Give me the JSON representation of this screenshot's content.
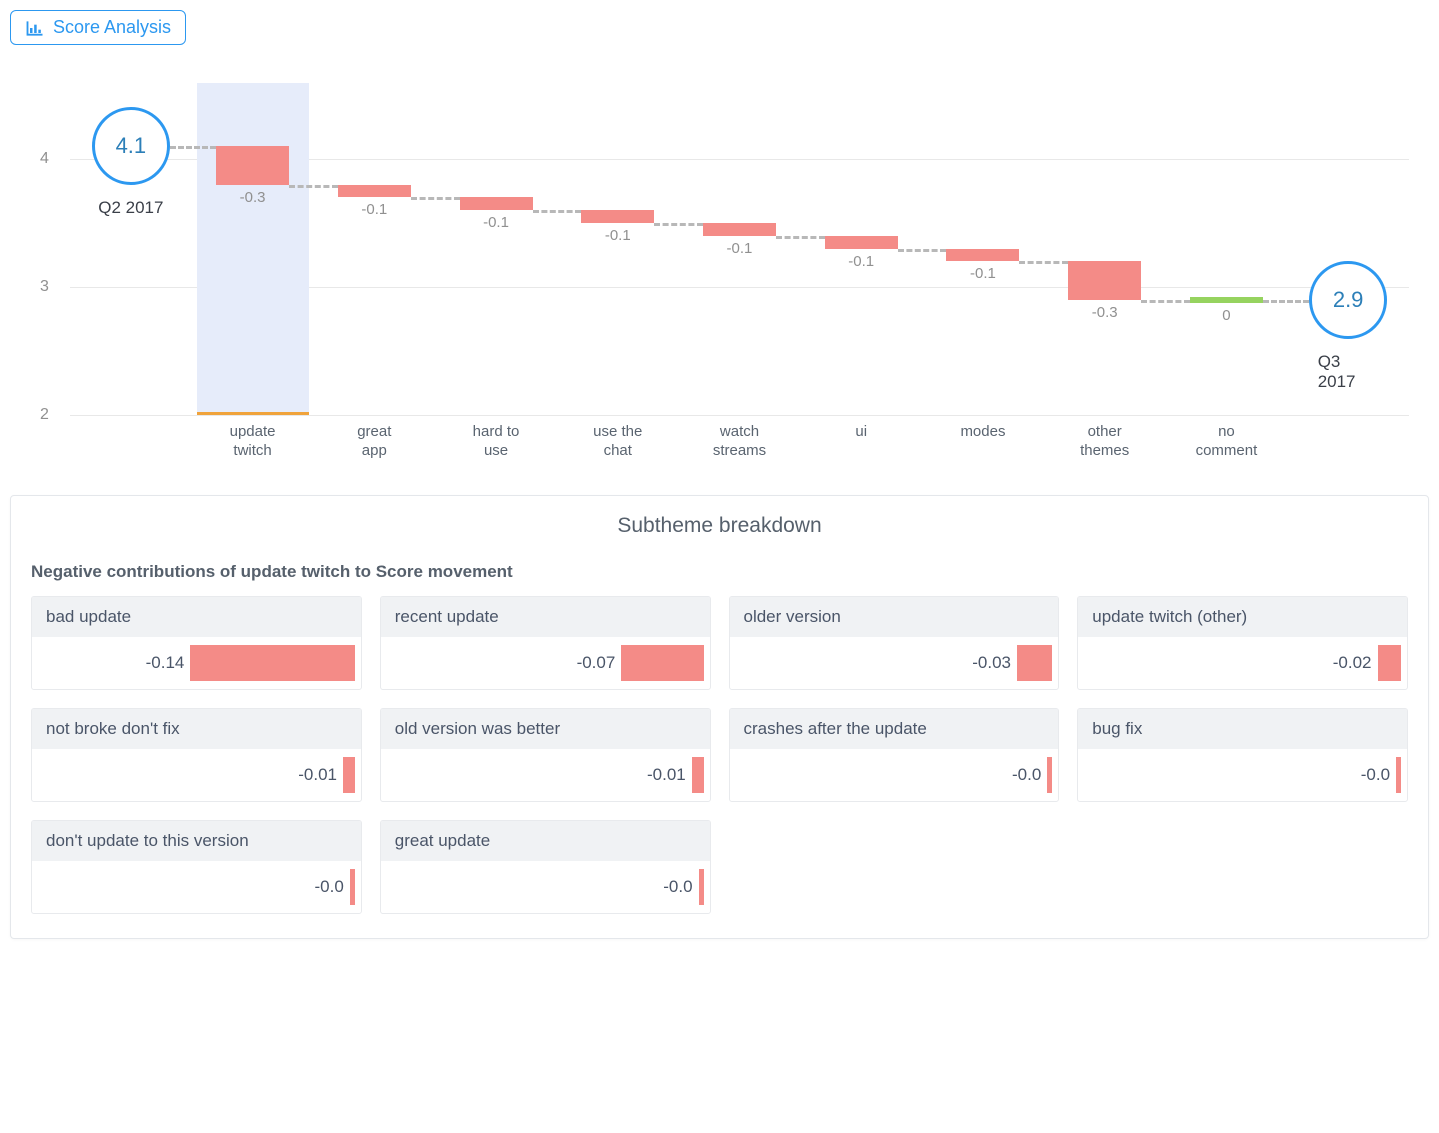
{
  "header": {
    "button_label": "Score Analysis"
  },
  "waterfall": {
    "type": "waterfall",
    "y_axis": {
      "min": 2,
      "max": 4.5,
      "ticks": [
        2,
        3,
        4
      ]
    },
    "gridline_color": "#e8e8e8",
    "start": {
      "value": 4.1,
      "label": "Q2 2017"
    },
    "end": {
      "value": 2.9,
      "label": "Q3 2017"
    },
    "circle_border_color": "#2c98f0",
    "circle_text_color": "#2c7fb8",
    "dash_color": "#b8b8b8",
    "highlight_bg": "#e6ecfa",
    "highlight_underline_color": "#f0a33b",
    "bar_color_neg": "#f48b87",
    "bar_color_pos": "#96d35f",
    "selected_index": 0,
    "steps": [
      {
        "label": "update twitch",
        "delta": -0.3,
        "display": "-0.3"
      },
      {
        "label": "great app",
        "delta": -0.1,
        "display": "-0.1"
      },
      {
        "label": "hard to use",
        "delta": -0.1,
        "display": "-0.1"
      },
      {
        "label": "use the chat",
        "delta": -0.1,
        "display": "-0.1"
      },
      {
        "label": "watch streams",
        "delta": -0.1,
        "display": "-0.1"
      },
      {
        "label": "ui",
        "delta": -0.1,
        "display": "-0.1"
      },
      {
        "label": "modes",
        "delta": -0.1,
        "display": "-0.1"
      },
      {
        "label": "other themes",
        "delta": -0.3,
        "display": "-0.3"
      },
      {
        "label": "no comment",
        "delta": 0.0,
        "display": "0"
      }
    ]
  },
  "subtheme": {
    "panel_title": "Subtheme breakdown",
    "section_label": "Negative contributions of update twitch to Score movement",
    "bar_color": "#f48b87",
    "value_scale_max": 0.14,
    "items": [
      {
        "label": "bad update",
        "value": -0.14,
        "display": "-0.14"
      },
      {
        "label": "recent update",
        "value": -0.07,
        "display": "-0.07"
      },
      {
        "label": "older version",
        "value": -0.03,
        "display": "-0.03"
      },
      {
        "label": "update twitch (other)",
        "value": -0.02,
        "display": "-0.02"
      },
      {
        "label": "not broke don't fix",
        "value": -0.01,
        "display": "-0.01"
      },
      {
        "label": "old version was better",
        "value": -0.01,
        "display": "-0.01"
      },
      {
        "label": "crashes after the update",
        "value": -0.004,
        "display": "-0.0"
      },
      {
        "label": "bug fix",
        "value": -0.004,
        "display": "-0.0"
      },
      {
        "label": "don't update to this version",
        "value": -0.004,
        "display": "-0.0"
      },
      {
        "label": "great update",
        "value": -0.004,
        "display": "-0.0"
      }
    ]
  }
}
